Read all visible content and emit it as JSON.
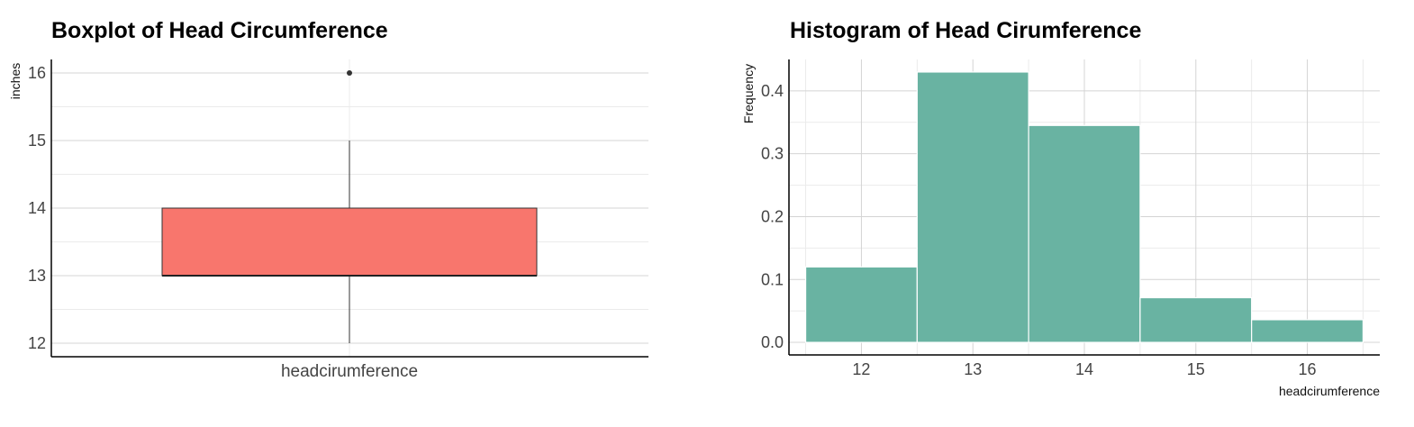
{
  "colors": {
    "box_fill": "#F8766D",
    "hist_fill": "#69B3A2",
    "grid_major": "#D4D4D4",
    "grid_minor": "#EBEBEB",
    "axis_line": "#000000",
    "outlier": "#333333"
  },
  "chart_data": [
    {
      "type": "box",
      "title": "Boxplot of Head Circumference",
      "xlabel": "",
      "ylabel": "inches",
      "categories": [
        "headcirumference"
      ],
      "ylim": [
        11.8,
        16.2
      ],
      "yticks": [
        12,
        13,
        14,
        15,
        16
      ],
      "grid": true,
      "boxes": [
        {
          "category": "headcirumference",
          "whisker_low": 12,
          "q1": 13,
          "median": 13,
          "q3": 14,
          "whisker_high": 15,
          "outliers": [
            16
          ]
        }
      ]
    },
    {
      "type": "bar",
      "subtype": "histogram",
      "title": "Histogram of Head Cirumference",
      "xlabel": "headcirumference",
      "ylabel": "Frequency",
      "xlim": [
        11.35,
        16.65
      ],
      "ylim": [
        -0.02,
        0.45
      ],
      "xticks": [
        12,
        13,
        14,
        15,
        16
      ],
      "yticks": [
        0.0,
        0.1,
        0.2,
        0.3,
        0.4
      ],
      "ytick_labels": [
        "0.0",
        "0.1",
        "0.2",
        "0.3",
        "0.4"
      ],
      "grid": true,
      "bins": [
        {
          "x0": 11.5,
          "x1": 12.5,
          "value": 0.12
        },
        {
          "x0": 12.5,
          "x1": 13.5,
          "value": 0.43
        },
        {
          "x0": 13.5,
          "x1": 14.5,
          "value": 0.345
        },
        {
          "x0": 14.5,
          "x1": 15.5,
          "value": 0.071
        },
        {
          "x0": 15.5,
          "x1": 16.5,
          "value": 0.036
        }
      ]
    }
  ]
}
